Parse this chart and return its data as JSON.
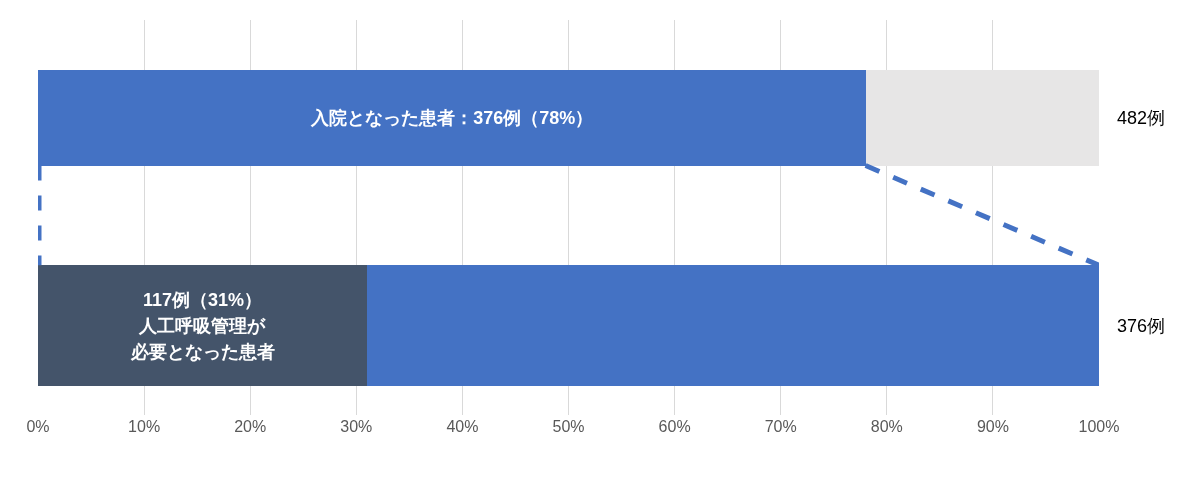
{
  "chart_data": {
    "type": "bar",
    "orientation": "horizontal",
    "stacked": true,
    "categories": [
      null,
      null
    ],
    "series": [
      {
        "colors": [
          "#4472c4",
          "#44546a"
        ],
        "values": [
          78,
          31
        ],
        "value_labels": [
          "入院となった患者：376例（78%）",
          null
        ]
      },
      {
        "colors": [
          "#e7e6e6",
          "#4472c4"
        ],
        "values": [
          22,
          69
        ]
      }
    ],
    "annotations": [
      "482例",
      "376例",
      "117例（31%）",
      "人工呼吸管理が",
      "必要となった患者"
    ],
    "xlim": [
      0,
      100
    ],
    "xticks": [
      {
        "value": 0,
        "label": "0%"
      },
      {
        "value": 10,
        "label": "10%"
      },
      {
        "value": 20,
        "label": "20%"
      },
      {
        "value": 30,
        "label": "30%"
      },
      {
        "value": 40,
        "label": "40%"
      },
      {
        "value": 50,
        "label": "50%"
      },
      {
        "value": 60,
        "label": "60%"
      },
      {
        "value": 70,
        "label": "70%"
      },
      {
        "value": 80,
        "label": "80%"
      },
      {
        "value": 90,
        "label": "90%"
      },
      {
        "value": 100,
        "label": "100%"
      }
    ],
    "grid": "x",
    "tick_labels": "x"
  }
}
